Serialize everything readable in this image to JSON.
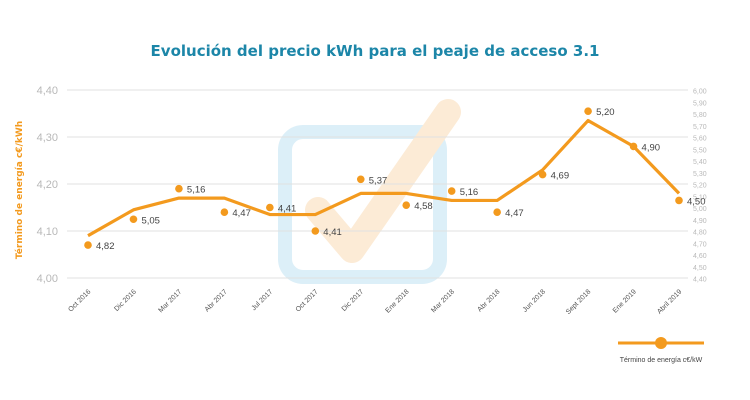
{
  "colors": {
    "accent": "#F39A1E",
    "title": "#1C86A8",
    "grid": "#E1E1E1",
    "tick": "#B8B8B8",
    "watermark_blue": "#DCEFF8",
    "watermark_orange": "#FCEBD6"
  },
  "chart_data": {
    "type": "line",
    "title": "Evolución del precio kWh para el peaje de acceso 3.1",
    "ylabel": "Término de energía c€/kWh",
    "categories": [
      "Oct 2016",
      "Dic 2016",
      "Mar 2017",
      "Abr 2017",
      "Jul 2017",
      "Oct 2017",
      "Dic 2017",
      "Ene 2018",
      "Mar 2018",
      "Abr 2018",
      "Jun 2018",
      "Sept 2018",
      "Ene 2019",
      "Abril 2019"
    ],
    "ylim": [
      4.0,
      4.4
    ],
    "yticks": [
      "4,00",
      "4,10",
      "4,20",
      "4,30",
      "4,40"
    ],
    "y2lim": [
      4.4,
      6.0
    ],
    "y2ticks": [
      "4,40",
      "4,50",
      "4,60",
      "4,70",
      "4,80",
      "4,90",
      "5,00",
      "5,10",
      "5,20",
      "5,30",
      "5,40",
      "5,50",
      "5,60",
      "5,70",
      "5,80",
      "5,90",
      "6,00"
    ],
    "grid": true,
    "series": [
      {
        "name": "Término de energía c€/kW",
        "axis": "left",
        "values": [
          4.09,
          4.145,
          4.17,
          4.17,
          4.135,
          4.135,
          4.18,
          4.18,
          4.165,
          4.165,
          4.23,
          4.335,
          4.28,
          4.18
        ]
      }
    ],
    "points": [
      {
        "y": 4.07,
        "label": "4,82"
      },
      {
        "y": 4.125,
        "label": "5,05"
      },
      {
        "y": 4.19,
        "label": "5,16"
      },
      {
        "y": 4.14,
        "label": "4,47"
      },
      {
        "y": 4.15,
        "label": "4,41"
      },
      {
        "y": 4.1,
        "label": "4,41"
      },
      {
        "y": 4.21,
        "label": "5,37"
      },
      {
        "y": 4.155,
        "label": "4,58"
      },
      {
        "y": 4.185,
        "label": "5,16"
      },
      {
        "y": 4.14,
        "label": "4,47"
      },
      {
        "y": 4.22,
        "label": "4,69"
      },
      {
        "y": 4.355,
        "label": "5,20"
      },
      {
        "y": 4.28,
        "label": "4,90"
      },
      {
        "y": 4.165,
        "label": "4,50"
      }
    ],
    "legend": {
      "position": "bottom-right",
      "label": "Término de energía c€/kW"
    }
  }
}
